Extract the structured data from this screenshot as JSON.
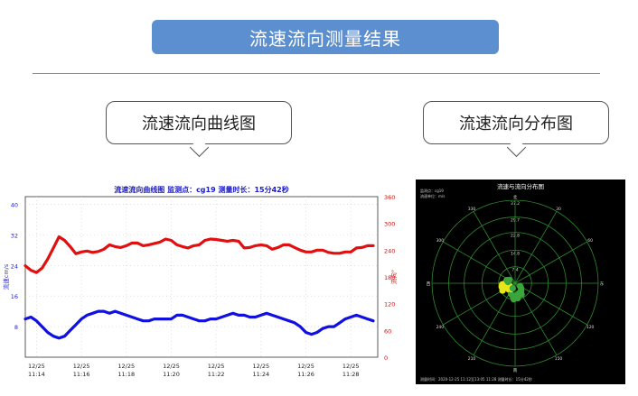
{
  "header": {
    "title": "流速流向测量结果"
  },
  "labels": {
    "left_callout": "流速流向曲线图",
    "right_callout": "流速流向分布图"
  },
  "colors": {
    "banner": "#5b8fd0",
    "speed_series": "#1010e0",
    "direction_series": "#e01010",
    "chart_title": "#1a1ad0"
  },
  "chart_data": [
    {
      "type": "line",
      "title": "流速流向曲线图 监测点：cg19 测量时长：15分42秒",
      "ylabel_left": "流速cm/s",
      "ylabel_right": "流向°",
      "ylim_left": [
        0,
        42
      ],
      "ylim_right": [
        0,
        360
      ],
      "yticks_left": [
        "40",
        "32",
        "24",
        "16",
        "8"
      ],
      "yticks_right": [
        "360",
        "300",
        "240",
        "180",
        "120",
        "60",
        "0"
      ],
      "xlim": [
        0,
        15.7
      ],
      "xticks": [
        {
          "value": 0.5,
          "date": "12/25",
          "time": "11:14"
        },
        {
          "value": 2.5,
          "date": "12/25",
          "time": "11:16"
        },
        {
          "value": 4.5,
          "date": "12/25",
          "time": "11:18"
        },
        {
          "value": 6.5,
          "date": "12/25",
          "time": "11:20"
        },
        {
          "value": 8.5,
          "date": "12/25",
          "time": "11:22"
        },
        {
          "value": 10.5,
          "date": "12/25",
          "time": "11:24"
        },
        {
          "value": 12.5,
          "date": "12/25",
          "time": "11:26"
        },
        {
          "value": 14.5,
          "date": "12/25",
          "time": "11:28"
        }
      ],
      "series": [
        {
          "axis": "left",
          "x": [
            0,
            0.25,
            0.5,
            0.75,
            1.0,
            1.25,
            1.5,
            1.75,
            2.0,
            2.25,
            2.5,
            2.75,
            3.0,
            3.25,
            3.5,
            3.75,
            4.0,
            4.25,
            4.5,
            4.75,
            5.0,
            5.25,
            5.5,
            5.75,
            6.0,
            6.25,
            6.5,
            6.75,
            7.0,
            7.25,
            7.5,
            7.75,
            8.0,
            8.25,
            8.5,
            8.75,
            9.0,
            9.25,
            9.5,
            9.75,
            10.0,
            10.25,
            10.5,
            10.75,
            11.0,
            11.25,
            11.5,
            11.75,
            12.0,
            12.25,
            12.5,
            12.75,
            13.0,
            13.25,
            13.5,
            13.75,
            14.0,
            14.25,
            14.5,
            14.75,
            15.0,
            15.25,
            15.5
          ],
          "values": [
            10,
            10.5,
            9.5,
            8,
            6.5,
            5.5,
            5,
            5.5,
            7,
            8.5,
            10,
            11,
            11.5,
            12,
            12,
            11.5,
            12,
            11.5,
            11,
            10.5,
            10,
            9.5,
            9.5,
            10,
            10,
            10,
            10,
            11,
            11,
            10.5,
            10,
            9.5,
            9.5,
            10,
            10,
            10.5,
            11,
            11.5,
            11,
            11,
            10.5,
            10.5,
            11,
            11.5,
            11,
            10.5,
            10,
            9.5,
            9,
            8,
            6.5,
            6,
            6.5,
            7.5,
            8,
            8,
            9,
            10,
            10.5,
            11,
            10.5,
            10,
            9.5
          ]
        },
        {
          "axis": "right",
          "x": [
            0,
            0.25,
            0.5,
            0.75,
            1.0,
            1.25,
            1.5,
            1.75,
            2.0,
            2.25,
            2.5,
            2.75,
            3.0,
            3.25,
            3.5,
            3.75,
            4.0,
            4.25,
            4.5,
            4.75,
            5.0,
            5.25,
            5.5,
            5.75,
            6.0,
            6.25,
            6.5,
            6.75,
            7.0,
            7.25,
            7.5,
            7.75,
            8.0,
            8.25,
            8.5,
            8.75,
            9.0,
            9.25,
            9.5,
            9.75,
            10.0,
            10.25,
            10.5,
            10.75,
            11.0,
            11.25,
            11.5,
            11.75,
            12.0,
            12.25,
            12.5,
            12.75,
            13.0,
            13.25,
            13.5,
            13.75,
            14.0,
            14.25,
            14.5,
            14.75,
            15.0,
            15.25,
            15.5
          ],
          "values": [
            205,
            195,
            190,
            200,
            220,
            245,
            270,
            262,
            248,
            232,
            236,
            238,
            235,
            237,
            242,
            252,
            248,
            246,
            250,
            256,
            256,
            250,
            252,
            255,
            258,
            265,
            262,
            252,
            248,
            245,
            250,
            252,
            262,
            265,
            264,
            262,
            260,
            262,
            260,
            245,
            246,
            250,
            252,
            250,
            242,
            246,
            252,
            252,
            246,
            240,
            236,
            236,
            240,
            240,
            235,
            233,
            233,
            236,
            236,
            245,
            246,
            250,
            250
          ]
        }
      ]
    },
    {
      "type": "scatter",
      "title": "流速与流向分布图",
      "info_top": [
        "监测点：cg19",
        "流速单位：m/s"
      ],
      "footer": "测量时间：2020-12-25 11:12至13:05 11:28    测量时长：15分42秒",
      "radial_ticks": [
        "37.2",
        "29.7",
        "22.8",
        "14.8",
        "7.4"
      ],
      "rmax": 37.2,
      "angle_labels": [
        "北",
        "30",
        "60",
        "东",
        "120",
        "150",
        "南",
        "210",
        "240",
        "西",
        "300",
        "330"
      ],
      "points": [
        {
          "direction": 230,
          "speed": 3.5
        },
        {
          "direction": 240,
          "speed": 4.2
        },
        {
          "direction": 250,
          "speed": 4.8
        },
        {
          "direction": 260,
          "speed": 5.0
        },
        {
          "direction": 245,
          "speed": 5.5
        },
        {
          "direction": 235,
          "speed": 3.0
        },
        {
          "direction": 255,
          "speed": 6.2
        },
        {
          "direction": 265,
          "speed": 5.8
        },
        {
          "direction": 225,
          "speed": 4.0
        },
        {
          "direction": 250,
          "speed": 2.8
        },
        {
          "direction": 270,
          "speed": 4.5
        },
        {
          "direction": 240,
          "speed": 6.5
        },
        {
          "direction": 200,
          "speed": 5.2
        },
        {
          "direction": 190,
          "speed": 6.0
        },
        {
          "direction": 175,
          "speed": 5.5
        },
        {
          "direction": 160,
          "speed": 4.8
        },
        {
          "direction": 150,
          "speed": 5.8
        },
        {
          "direction": 170,
          "speed": 6.8
        },
        {
          "direction": 185,
          "speed": 7.2
        },
        {
          "direction": 140,
          "speed": 4.2
        },
        {
          "direction": 130,
          "speed": 3.5
        },
        {
          "direction": 280,
          "speed": 3.2
        },
        {
          "direction": 290,
          "speed": 4.0
        },
        {
          "direction": 300,
          "speed": 3.0
        },
        {
          "direction": 120,
          "speed": 2.6
        },
        {
          "direction": 215,
          "speed": 3.2
        },
        {
          "direction": 205,
          "speed": 2.5
        }
      ]
    }
  ]
}
